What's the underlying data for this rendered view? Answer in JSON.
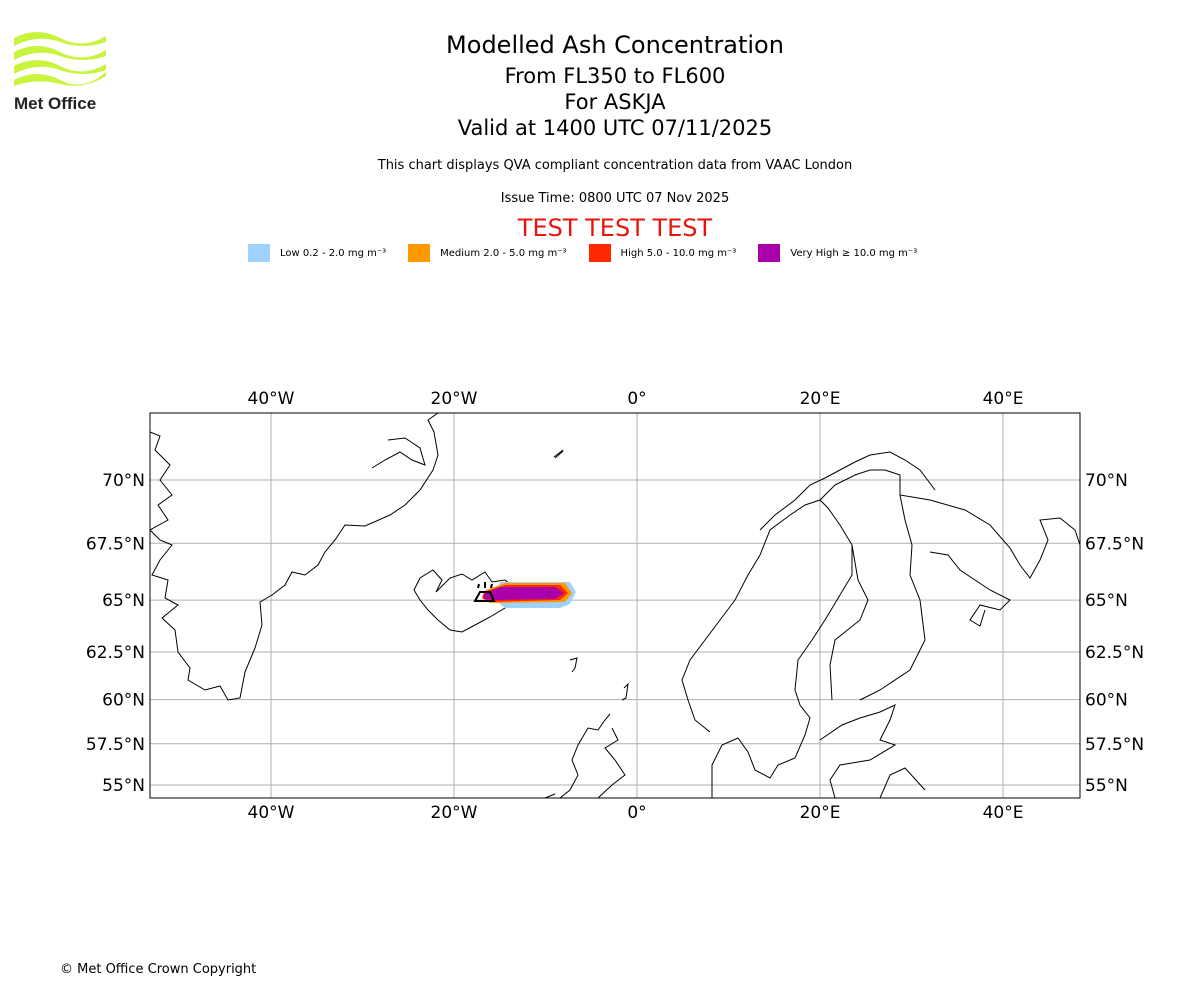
{
  "logo": {
    "text": "Met Office",
    "color": "#c8f53c"
  },
  "header": {
    "title": "Modelled Ash Concentration",
    "levels": "From FL350 to FL600",
    "volcano": "For ASKJA",
    "valid": "Valid at 1400 UTC 07/11/2025",
    "description": "This chart displays QVA compliant concentration data from VAAC London",
    "issue_time": "Issue Time: 0800 UTC 07 Nov 2025",
    "test_banner": "TEST TEST TEST"
  },
  "legend": [
    {
      "label": "Low 0.2 - 2.0 mg m⁻³",
      "color": "#a0d2ff"
    },
    {
      "label": "Medium 2.0 - 5.0 mg m⁻³",
      "color": "#ff9900"
    },
    {
      "label": "High 5.0 - 10.0 mg m⁻³",
      "color": "#ff2800"
    },
    {
      "label": "Very High ≥ 10.0 mg m⁻³",
      "color": "#aa00aa"
    }
  ],
  "map": {
    "lon_ticks": [
      {
        "v": -40,
        "label": "40°W"
      },
      {
        "v": -20,
        "label": "20°W"
      },
      {
        "v": 0,
        "label": "0°"
      },
      {
        "v": 20,
        "label": "20°E"
      },
      {
        "v": 40,
        "label": "40°E"
      }
    ],
    "lat_ticks": [
      {
        "v": 70,
        "label": "70°N"
      },
      {
        "v": 67.5,
        "label": "67.5°N"
      },
      {
        "v": 65,
        "label": "65°N"
      },
      {
        "v": 62.5,
        "label": "62.5°N"
      },
      {
        "v": 60,
        "label": "60°N"
      },
      {
        "v": 57.5,
        "label": "57.5°N"
      },
      {
        "v": 55,
        "label": "55°N"
      }
    ],
    "extent": {
      "lon": [
        -53,
        48.5
      ],
      "lat": [
        54.5,
        72.6
      ]
    },
    "volcano": {
      "name": "ASKJA",
      "lat": 65.03,
      "lon": -16.75
    }
  },
  "footer": {
    "copyright": "© Met Office Crown Copyright"
  }
}
